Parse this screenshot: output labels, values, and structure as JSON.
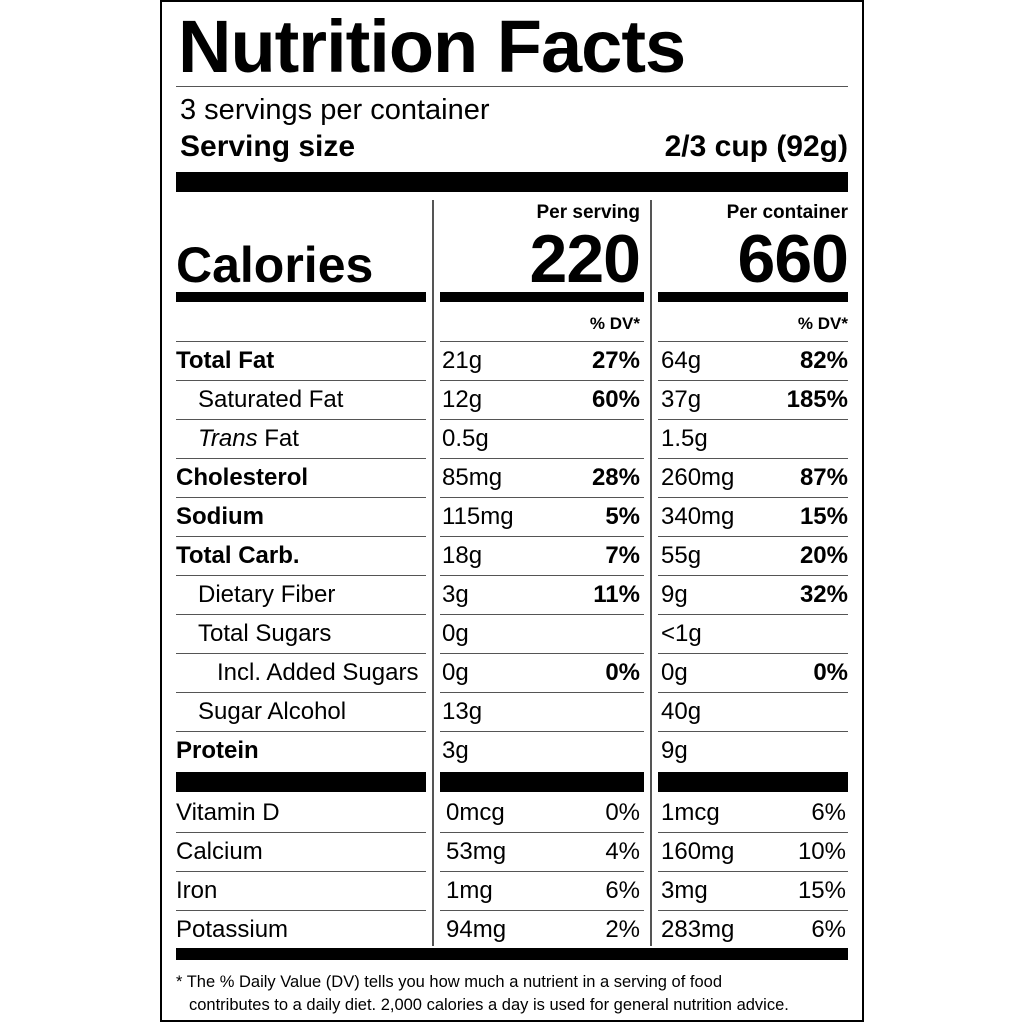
{
  "label": {
    "title": "Nutrition Facts",
    "servings_per_container": "3 servings per container",
    "serving_size_label": "Serving size",
    "serving_size_value": "2/3 cup (92g)",
    "col_per_serving": "Per serving",
    "col_per_container": "Per container",
    "calories_label": "Calories",
    "calories_per_serving": "220",
    "calories_per_container": "660",
    "dv_header": "% DV*",
    "nutrients": [
      {
        "name": "Total Fat",
        "bold": true,
        "indent": 0,
        "serv_amt": "21g",
        "serv_dv": "27%",
        "cont_amt": "64g",
        "cont_dv": "82%"
      },
      {
        "name": "Saturated Fat",
        "bold": false,
        "indent": 1,
        "serv_amt": "12g",
        "serv_dv": "60%",
        "cont_amt": "37g",
        "cont_dv": "185%"
      },
      {
        "name": "Trans",
        "name_suffix": " Fat",
        "italic": true,
        "bold": false,
        "indent": 1,
        "serv_amt": "0.5g",
        "serv_dv": "",
        "cont_amt": "1.5g",
        "cont_dv": ""
      },
      {
        "name": "Cholesterol",
        "bold": true,
        "indent": 0,
        "serv_amt": "85mg",
        "serv_dv": "28%",
        "cont_amt": "260mg",
        "cont_dv": "87%"
      },
      {
        "name": "Sodium",
        "bold": true,
        "indent": 0,
        "serv_amt": "115mg",
        "serv_dv": "5%",
        "cont_amt": "340mg",
        "cont_dv": "15%"
      },
      {
        "name": "Total Carb.",
        "bold": true,
        "indent": 0,
        "serv_amt": "18g",
        "serv_dv": "7%",
        "cont_amt": "55g",
        "cont_dv": "20%"
      },
      {
        "name": "Dietary Fiber",
        "bold": false,
        "indent": 1,
        "serv_amt": "3g",
        "serv_dv": "11%",
        "cont_amt": "9g",
        "cont_dv": "32%"
      },
      {
        "name": "Total Sugars",
        "bold": false,
        "indent": 1,
        "serv_amt": "0g",
        "serv_dv": "",
        "cont_amt": "<1g",
        "cont_dv": ""
      },
      {
        "name": "Incl. Added Sugars",
        "bold": false,
        "indent": 2,
        "serv_amt": "0g",
        "serv_dv": "0%",
        "cont_amt": "0g",
        "cont_dv": "0%"
      },
      {
        "name": "Sugar Alcohol",
        "bold": false,
        "indent": 1,
        "serv_amt": "13g",
        "serv_dv": "",
        "cont_amt": "40g",
        "cont_dv": ""
      },
      {
        "name": "Protein",
        "bold": true,
        "indent": 0,
        "serv_amt": "3g",
        "serv_dv": "",
        "cont_amt": "9g",
        "cont_dv": ""
      }
    ],
    "vitamins": [
      {
        "name": "Vitamin D",
        "serv_amt": "0mcg",
        "serv_dv": "0%",
        "cont_amt": "1mcg",
        "cont_dv": "6%"
      },
      {
        "name": "Calcium",
        "serv_amt": "53mg",
        "serv_dv": "4%",
        "cont_amt": "160mg",
        "cont_dv": "10%"
      },
      {
        "name": "Iron",
        "serv_amt": "1mg",
        "serv_dv": "6%",
        "cont_amt": "3mg",
        "cont_dv": "15%"
      },
      {
        "name": "Potassium",
        "serv_amt": "94mg",
        "serv_dv": "2%",
        "cont_amt": "283mg",
        "cont_dv": "6%"
      }
    ],
    "footnote_line1": "* The % Daily Value (DV) tells you how much a nutrient in a serving of food",
    "footnote_line2": "contributes to a daily diet. 2,000 calories a day is used for general nutrition advice."
  }
}
